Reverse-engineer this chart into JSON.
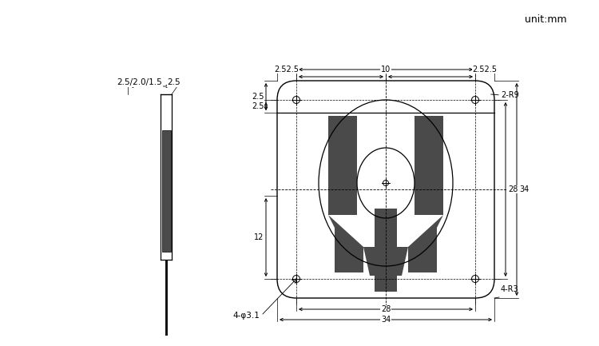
{
  "bg_color": "#ffffff",
  "line_color": "#000000",
  "dark_gray": "#4a4a4a",
  "unit_text": "unit:mm",
  "dim_top_left": "2.5/2.0/1.5",
  "dim_top_left2": "2.5",
  "dim_top_mid": "2.52.5",
  "dim_top_center": "10",
  "dim_top_right": "2.52.5",
  "dim_right_28": "28",
  "dim_right_34": "34",
  "dim_bot_28": "28",
  "dim_bot_34": "34",
  "dim_left_12": "12",
  "dim_bot_left": "4-φ3.1",
  "dim_bot_right": "4-R3",
  "dim_2r9": "2-R9",
  "dim_top_strip": "2.5",
  "dim_top_strip2": "2.5"
}
